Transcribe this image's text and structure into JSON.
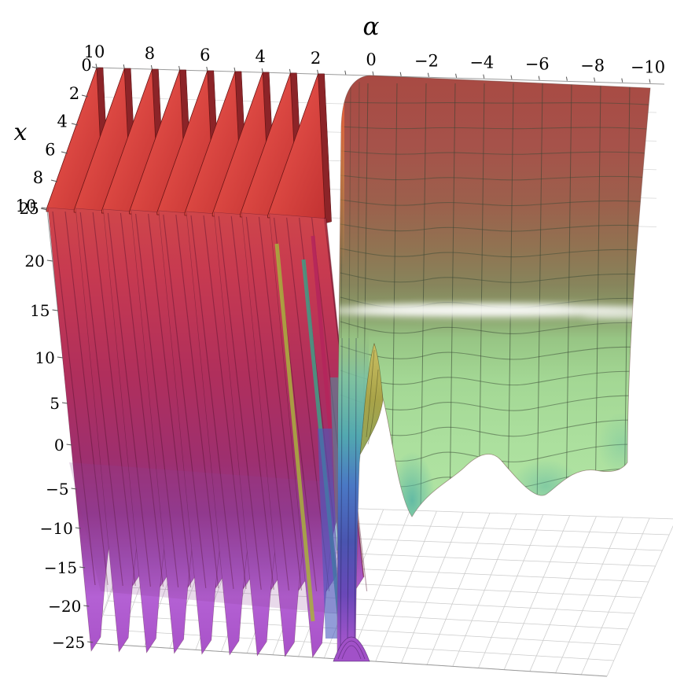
{
  "figure": {
    "kind": "3d-surface-plot",
    "background_color": "#ffffff",
    "alpha_axis": {
      "label": "α",
      "position": "top",
      "ticks": [
        "10",
        "8",
        "6",
        "4",
        "2",
        "0",
        "−2",
        "−4",
        "−6",
        "−8",
        "−10"
      ]
    },
    "x_axis": {
      "label": "x",
      "position": "upper-left-receding",
      "ticks": [
        "0",
        "2",
        "4",
        "6",
        "8",
        "10"
      ]
    },
    "z_axis": {
      "label": "",
      "position": "left-vertical",
      "ticks": [
        "25",
        "20",
        "15",
        "10",
        "5",
        "0",
        "−5",
        "−10",
        "−15",
        "−20",
        "−25"
      ]
    }
  },
  "chart_data": {
    "type": "surface",
    "title": "",
    "xlabel": "α",
    "ylabel": "x",
    "zlabel": "",
    "alpha_axis_range": [
      10,
      -10
    ],
    "x_axis_range": [
      0,
      10
    ],
    "z_axis_range": [
      -25,
      25
    ],
    "alpha_ticks": [
      10,
      8,
      6,
      4,
      2,
      0,
      -2,
      -4,
      -6,
      -8,
      -10
    ],
    "x_ticks": [
      0,
      2,
      4,
      6,
      8,
      10
    ],
    "z_ticks": [
      25,
      20,
      15,
      10,
      5,
      0,
      -5,
      -10,
      -15,
      -20,
      -25
    ],
    "grid": true,
    "mesh_lines": true,
    "legend": null,
    "features": {
      "singular_sheets_alpha": [
        10,
        9,
        8,
        7,
        6,
        5,
        4,
        3,
        2
      ],
      "singular_sheets_note": "thin pole sheets spanning the whole z clip range; bright red sails above, crimson bodies, bright purple arched feet at z=-25",
      "cliff_alpha": 1,
      "smooth_region_alpha_range": [
        0,
        -10
      ],
      "smooth_region_note": "smooth surface plateau near z≈15 with white specular band; oscillations grow toward negative α: olive peak near α≈-0.3, teal valley near α≈-1.5, broad dip near α≈-6.5",
      "clipped_at": [
        -25,
        25
      ]
    },
    "colors": {
      "sheet_sail_red": "#f25048",
      "sheet_body_crimson": "#b02f5c",
      "sheet_foot_purple": "#a852c8",
      "waterfall_blue": "#4a5cbe",
      "surface_top_red": "#a84a43",
      "surface_green": "#a3d794",
      "valley_teal": "#56b4a4",
      "peak_olive": "#b3a84e",
      "highlight_white": "#ffffff",
      "floor_grid_gray": "#cbcbcb"
    }
  }
}
